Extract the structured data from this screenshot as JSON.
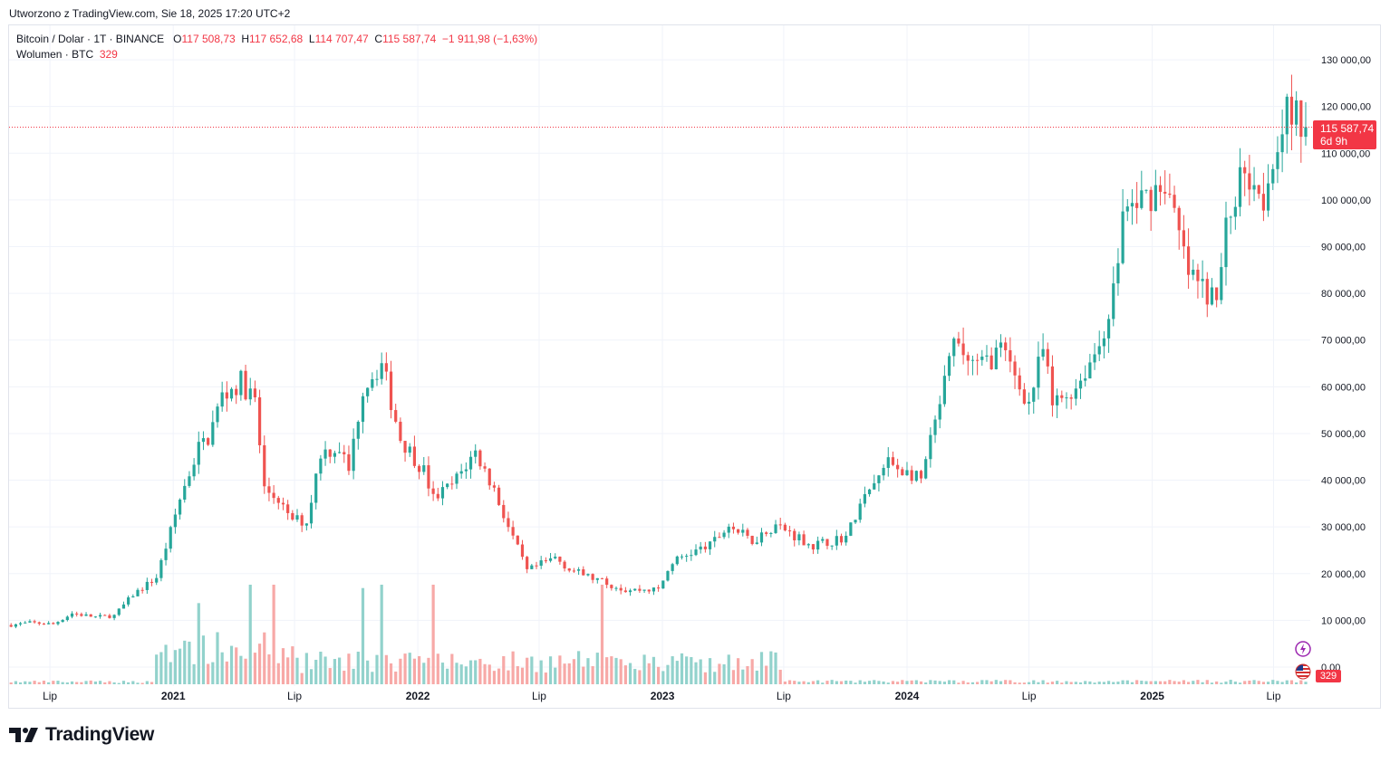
{
  "header": {
    "created_text": "Utworzono z TradingView.com, Sie 18, 2025 17:20 UTC+2"
  },
  "legend": {
    "symbol": "Bitcoin / Dolar · 1T · BINANCE",
    "open_label": "O",
    "open": "117 508,73",
    "high_label": "H",
    "high": "117 652,68",
    "low_label": "L",
    "low": "114 707,47",
    "close_label": "C",
    "close": "115 587,74",
    "change": "−1 911,98 (−1,63%)",
    "volume_label": "Wolumen · BTC",
    "volume_value": "329"
  },
  "price_tag": {
    "price": "115 587,74",
    "countdown": "6d 9h"
  },
  "volume_tag": "329",
  "brand": {
    "name": "TradingView"
  },
  "colors": {
    "up": "#26a69a",
    "down": "#ef5350",
    "up_vol": "#92d2cc",
    "down_vol": "#f7a9a7",
    "tag": "#f23645",
    "grid": "#f0f3fa"
  },
  "chart_data": {
    "type": "candlestick",
    "symbol": "BTCUSD",
    "timeframe": "1W",
    "x_tick_labels": [
      "Lip",
      "2021",
      "Lip",
      "2022",
      "Lip",
      "2023",
      "Lip",
      "2024",
      "Lip",
      "2025",
      "Lip"
    ],
    "y_tick_labels": [
      "0,00",
      "10 000,00",
      "20 000,00",
      "30 000,00",
      "40 000,00",
      "50 000,00",
      "60 000,00",
      "70 000,00",
      "80 000,00",
      "90 000,00",
      "100 000,00",
      "110 000,00",
      "120 000,00",
      "130 000,00"
    ],
    "y_ticks": [
      0,
      10000,
      20000,
      30000,
      40000,
      50000,
      60000,
      70000,
      80000,
      90000,
      100000,
      110000,
      120000,
      130000
    ],
    "ylim": [
      -5000,
      136000
    ],
    "x_range": [
      "2020-05-01",
      "2025-08-18"
    ],
    "last_close": 115587.74,
    "last_volume": 329,
    "grid": true,
    "series": [
      {
        "name": "Bitcoin / Dolar",
        "type": "candlestick"
      },
      {
        "name": "Wolumen",
        "type": "volume"
      }
    ],
    "close_anchors": [
      [
        "2020-05-04",
        9000
      ],
      [
        "2020-06-01",
        9500
      ],
      [
        "2020-07-06",
        9200
      ],
      [
        "2020-08-03",
        11500
      ],
      [
        "2020-09-07",
        10700
      ],
      [
        "2020-10-05",
        11000
      ],
      [
        "2020-11-02",
        15500
      ],
      [
        "2020-12-07",
        19200
      ],
      [
        "2020-12-28",
        29000
      ],
      [
        "2021-01-11",
        36000
      ],
      [
        "2021-02-08",
        47000
      ],
      [
        "2021-02-22",
        49000
      ],
      [
        "2021-03-15",
        58000
      ],
      [
        "2021-04-12",
        61000
      ],
      [
        "2021-05-03",
        57000
      ],
      [
        "2021-05-17",
        38000
      ],
      [
        "2021-06-07",
        36000
      ],
      [
        "2021-06-21",
        32000
      ],
      [
        "2021-07-19",
        31000
      ],
      [
        "2021-08-09",
        46000
      ],
      [
        "2021-09-06",
        47000
      ],
      [
        "2021-09-20",
        42000
      ],
      [
        "2021-10-11",
        60000
      ],
      [
        "2021-11-08",
        65000
      ],
      [
        "2021-11-22",
        57000
      ],
      [
        "2021-12-06",
        49000
      ],
      [
        "2022-01-10",
        42000
      ],
      [
        "2022-01-24",
        36000
      ],
      [
        "2022-02-21",
        39000
      ],
      [
        "2022-03-28",
        46000
      ],
      [
        "2022-04-25",
        38000
      ],
      [
        "2022-05-16",
        30000
      ],
      [
        "2022-06-13",
        20500
      ],
      [
        "2022-07-25",
        23500
      ],
      [
        "2022-08-15",
        21000
      ],
      [
        "2022-09-19",
        19000
      ],
      [
        "2022-11-07",
        16500
      ],
      [
        "2022-12-26",
        16600
      ],
      [
        "2023-01-16",
        22500
      ],
      [
        "2023-02-13",
        24500
      ],
      [
        "2023-03-13",
        26000
      ],
      [
        "2023-04-10",
        30300
      ],
      [
        "2023-05-15",
        27000
      ],
      [
        "2023-06-19",
        30500
      ],
      [
        "2023-08-14",
        26000
      ],
      [
        "2023-10-02",
        27900
      ],
      [
        "2023-10-23",
        34500
      ],
      [
        "2023-12-04",
        43800
      ],
      [
        "2024-01-22",
        40000
      ],
      [
        "2024-02-12",
        52000
      ],
      [
        "2024-03-11",
        69000
      ],
      [
        "2024-04-15",
        64000
      ],
      [
        "2024-05-20",
        68000
      ],
      [
        "2024-07-01",
        56500
      ],
      [
        "2024-07-22",
        68000
      ],
      [
        "2024-08-05",
        56000
      ],
      [
        "2024-09-09",
        60000
      ],
      [
        "2024-10-14",
        69000
      ],
      [
        "2024-11-04",
        80000
      ],
      [
        "2024-11-18",
        97000
      ],
      [
        "2024-12-16",
        100000
      ],
      [
        "2025-01-20",
        104000
      ],
      [
        "2025-02-24",
        84000
      ],
      [
        "2025-03-10",
        82000
      ],
      [
        "2025-04-07",
        78000
      ],
      [
        "2025-04-21",
        94000
      ],
      [
        "2025-05-19",
        108000
      ],
      [
        "2025-06-16",
        101000
      ],
      [
        "2025-07-14",
        118000
      ],
      [
        "2025-08-11",
        117500
      ],
      [
        "2025-08-18",
        115587.74
      ]
    ]
  }
}
